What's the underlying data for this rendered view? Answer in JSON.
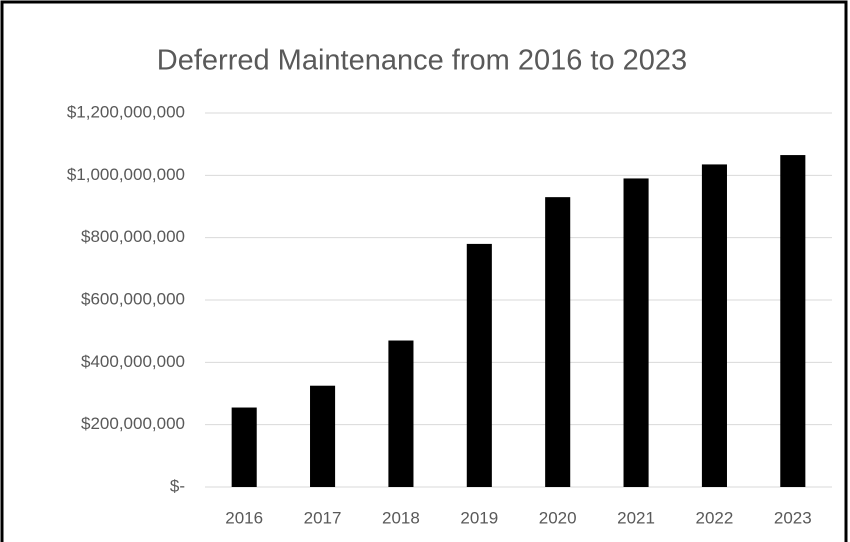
{
  "chart_data": {
    "type": "bar",
    "title": "Deferred Maintenance from 2016 to 2023",
    "categories": [
      "2016",
      "2017",
      "2018",
      "2019",
      "2020",
      "2021",
      "2022",
      "2023"
    ],
    "values": [
      255000000,
      325000000,
      470000000,
      780000000,
      930000000,
      990000000,
      1035000000,
      1065000000
    ],
    "color": "#000000",
    "ylim": [
      0,
      1200000000
    ],
    "yticks": [
      {
        "value": 0,
        "label": "$-"
      },
      {
        "value": 200000000,
        "label": "$200,000,000"
      },
      {
        "value": 400000000,
        "label": "$400,000,000"
      },
      {
        "value": 600000000,
        "label": "$600,000,000"
      },
      {
        "value": 800000000,
        "label": "$800,000,000"
      },
      {
        "value": 1000000000,
        "label": "$1,000,000,000"
      },
      {
        "value": 1200000000,
        "label": "$1,200,000,000"
      }
    ],
    "grid": true
  }
}
